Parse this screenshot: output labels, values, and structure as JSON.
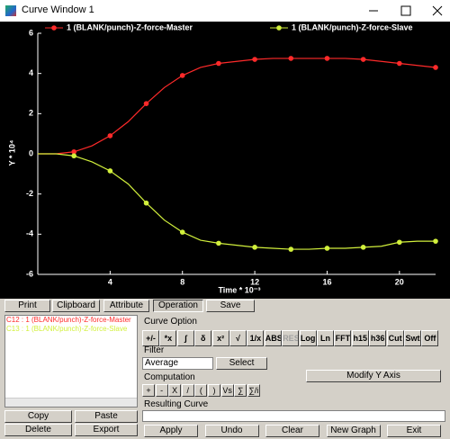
{
  "window": {
    "title": "Curve Window 1"
  },
  "chart_data": {
    "type": "line",
    "x": [
      0,
      1,
      2,
      3,
      4,
      5,
      6,
      7,
      8,
      9,
      10,
      11,
      12,
      13,
      14,
      15,
      16,
      17,
      18,
      19,
      20,
      21,
      22
    ],
    "series": [
      {
        "name": "1 (BLANK/punch)-Z-force-Master",
        "color": "#ff2a2a",
        "values": [
          0,
          0,
          0.1,
          0.4,
          0.9,
          1.6,
          2.5,
          3.3,
          3.9,
          4.3,
          4.5,
          4.6,
          4.7,
          4.75,
          4.75,
          4.75,
          4.75,
          4.75,
          4.7,
          4.6,
          4.5,
          4.4,
          4.3
        ]
      },
      {
        "name": "1 (BLANK/punch)-Z-force-Slave",
        "color": "#d2f03c",
        "values": [
          0,
          0,
          -0.1,
          -0.4,
          -0.85,
          -1.5,
          -2.45,
          -3.3,
          -3.9,
          -4.3,
          -4.45,
          -4.55,
          -4.65,
          -4.7,
          -4.75,
          -4.75,
          -4.7,
          -4.7,
          -4.65,
          -4.6,
          -4.4,
          -4.35,
          -4.35
        ]
      }
    ],
    "x_label": "Time * 10⁻³",
    "y_label": "Y * 10⁴",
    "xlim": [
      0,
      22
    ],
    "ylim": [
      -6,
      6
    ],
    "xticks": [
      4,
      8,
      12,
      16,
      20
    ],
    "yticks": [
      -6,
      -4,
      -2,
      0,
      2,
      4,
      6
    ],
    "grid": false
  },
  "tabs": [
    "Print",
    "Clipboard",
    "Attribute",
    "Operation",
    "Save"
  ],
  "curve_list": [
    "C12 : 1 (BLANK/punch)-Z-force-Master",
    "C13 : 1 (BLANK/punch)-Z-force-Slave"
  ],
  "list_buttons": [
    "Copy",
    "Paste",
    "Delete",
    "Export"
  ],
  "curve_option": {
    "label": "Curve Option",
    "buttons": [
      "+/-",
      "*x",
      "∫",
      "δ",
      "x²",
      "√",
      "1/x",
      "ABS",
      "RES",
      "Log",
      "Ln",
      "FFT",
      "h15",
      "h36",
      "Cut",
      "Swt",
      "Off"
    ]
  },
  "filter": {
    "label": "Filter",
    "selected": "Average",
    "button": "Select"
  },
  "computation": {
    "label": "Computation",
    "buttons": [
      "+",
      "-",
      "X",
      "/",
      "(",
      ")",
      "Vs",
      "∑",
      "∑/i"
    ]
  },
  "modify_y_axis": "Modify Y Axis",
  "resulting_curve": {
    "label": "Resulting Curve"
  },
  "action_buttons": [
    "Apply",
    "Undo",
    "Clear",
    "New Graph",
    "Exit"
  ]
}
